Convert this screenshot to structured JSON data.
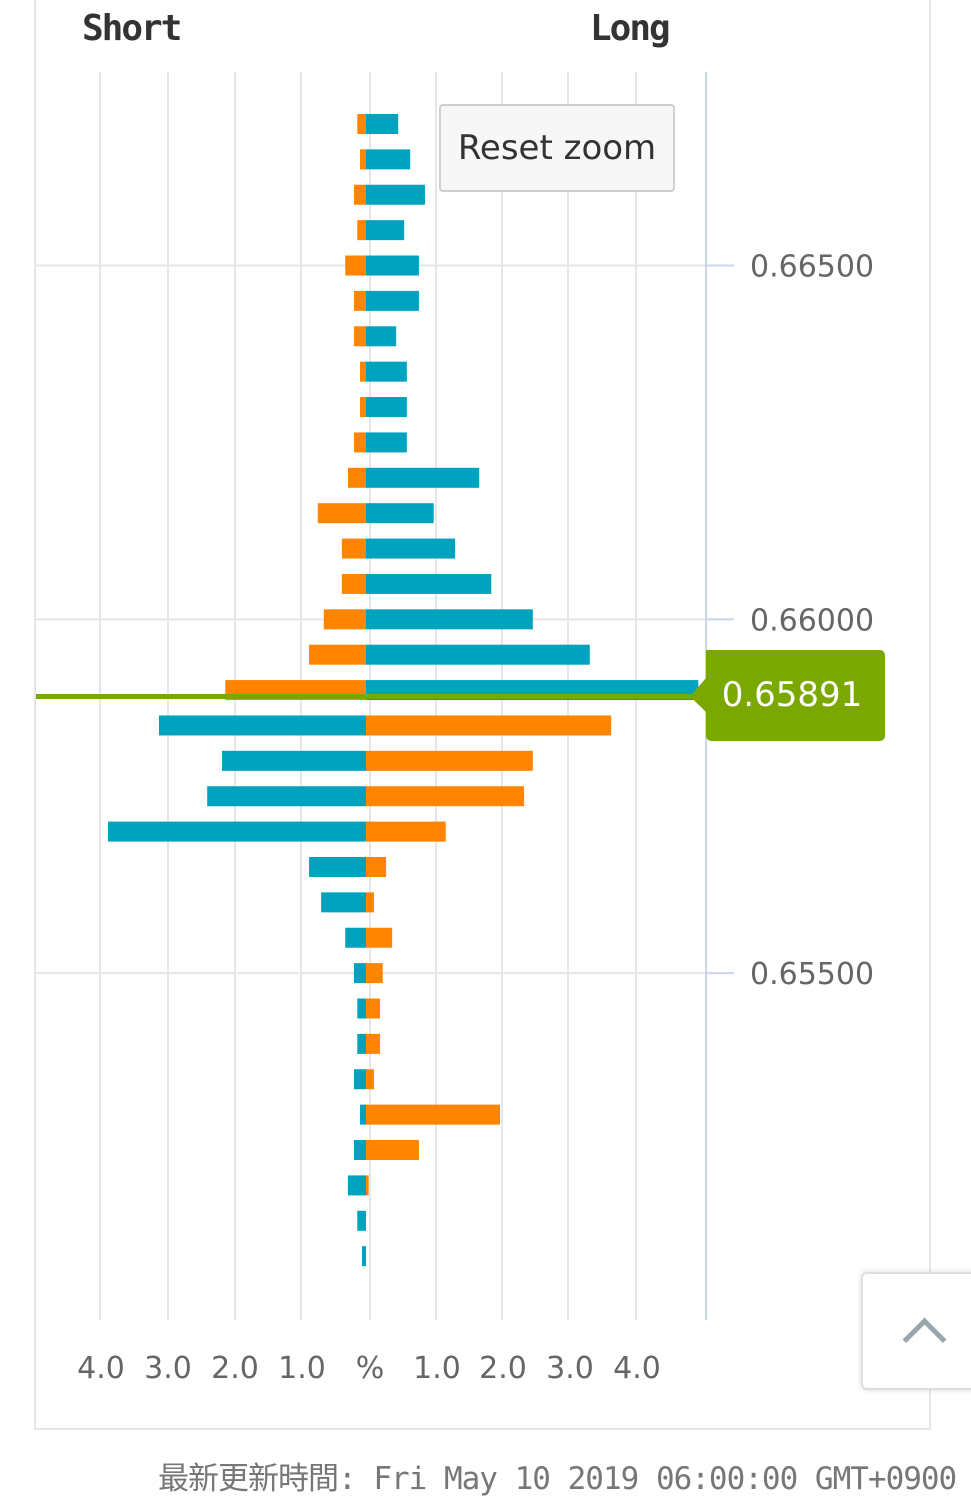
{
  "chart_data": {
    "type": "bar",
    "orientation": "horizontal-diverging",
    "header_left": "Short",
    "header_right": "Long",
    "x_axis_unit_label": "%",
    "x_ticks_left": [
      "4.0",
      "3.0",
      "2.0",
      "1.0"
    ],
    "x_ticks_right": [
      "1.0",
      "2.0",
      "3.0",
      "4.0"
    ],
    "xlim": [
      -5,
      5
    ],
    "y_tick_labels": [
      "0.66500",
      "0.66000",
      "0.65500"
    ],
    "y_ticks": [
      0.665,
      0.66,
      0.655
    ],
    "current_price": 0.65891,
    "current_price_label": "0.65891",
    "colors": {
      "orange": "#ff8400",
      "teal": "#00a2bd",
      "current": "#7aa800"
    },
    "color_rule": "rows above current price: short=orange, long=teal; rows below: short=teal, long=orange",
    "prices": [
      0.667,
      0.6665,
      0.666,
      0.6655,
      0.665,
      0.6645,
      0.664,
      0.6635,
      0.663,
      0.6625,
      0.662,
      0.6615,
      0.661,
      0.6605,
      0.66,
      0.6595,
      0.659,
      0.6585,
      0.658,
      0.6575,
      0.657,
      0.6565,
      0.656,
      0.6555,
      0.655,
      0.6545,
      0.654,
      0.6535,
      0.653,
      0.6525,
      0.652,
      0.6515,
      0.651
    ],
    "short": [
      0.13,
      0.09,
      0.18,
      0.13,
      0.31,
      0.18,
      0.18,
      0.09,
      0.09,
      0.18,
      0.27,
      0.72,
      0.36,
      0.36,
      0.63,
      0.85,
      2.1,
      3.09,
      2.15,
      2.37,
      3.85,
      0.85,
      0.67,
      0.31,
      0.18,
      0.13,
      0.13,
      0.18,
      0.09,
      0.18,
      0.27,
      0.13,
      0.06
    ],
    "long": [
      0.48,
      0.66,
      0.88,
      0.57,
      0.79,
      0.79,
      0.45,
      0.61,
      0.61,
      0.61,
      1.69,
      1.01,
      1.33,
      1.87,
      2.49,
      3.34,
      4.96,
      3.66,
      2.49,
      2.36,
      1.19,
      0.3,
      0.12,
      0.39,
      0.25,
      0.21,
      0.21,
      0.12,
      2.0,
      0.79,
      0.04,
      0,
      0
    ]
  },
  "reset_zoom_label": "Reset zoom",
  "footer": "最新更新時間: Fri May 10 2019 06:00:00 GMT+0900"
}
